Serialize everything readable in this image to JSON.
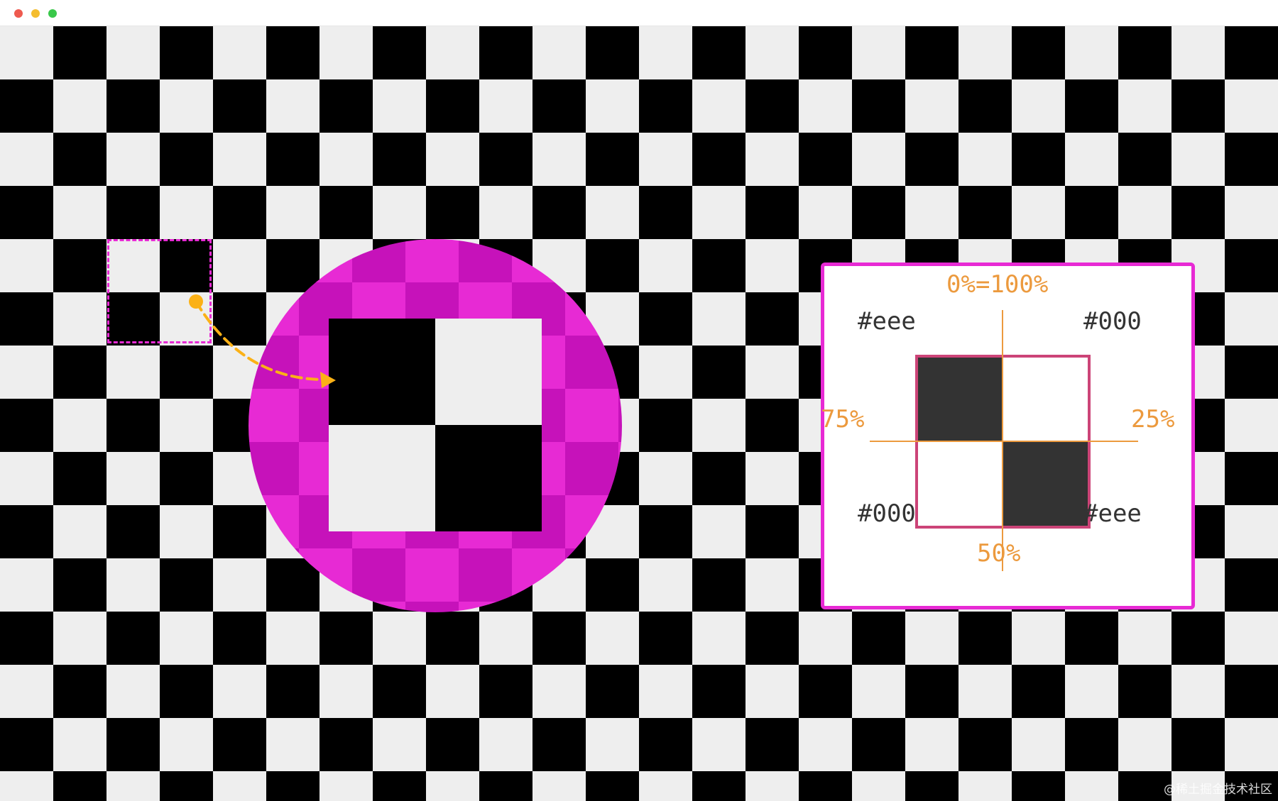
{
  "window": {
    "controls": [
      "close",
      "minimize",
      "maximize"
    ],
    "colors": {
      "close": "#ee5a4f",
      "minimize": "#f4bd2f",
      "maximize": "#39c84a"
    }
  },
  "canvas": {
    "pattern": "checkerboard",
    "colors": [
      "#eeeeee",
      "#000000"
    ]
  },
  "magnifier": {
    "highlight_color": "#e72ad4",
    "arrow_color": "#fbb116"
  },
  "legend": {
    "top_label": "0%=100%",
    "right_label": "25%",
    "bottom_label": "50%",
    "left_label": "75%",
    "top_left_color": "#eee",
    "top_right_color": "#000",
    "bottom_left_color": "#000",
    "bottom_right_color": "#eee",
    "border_color": "#e72ad4",
    "accent_color": "#ec9a3e"
  },
  "watermark": "@稀土掘金技术社区"
}
